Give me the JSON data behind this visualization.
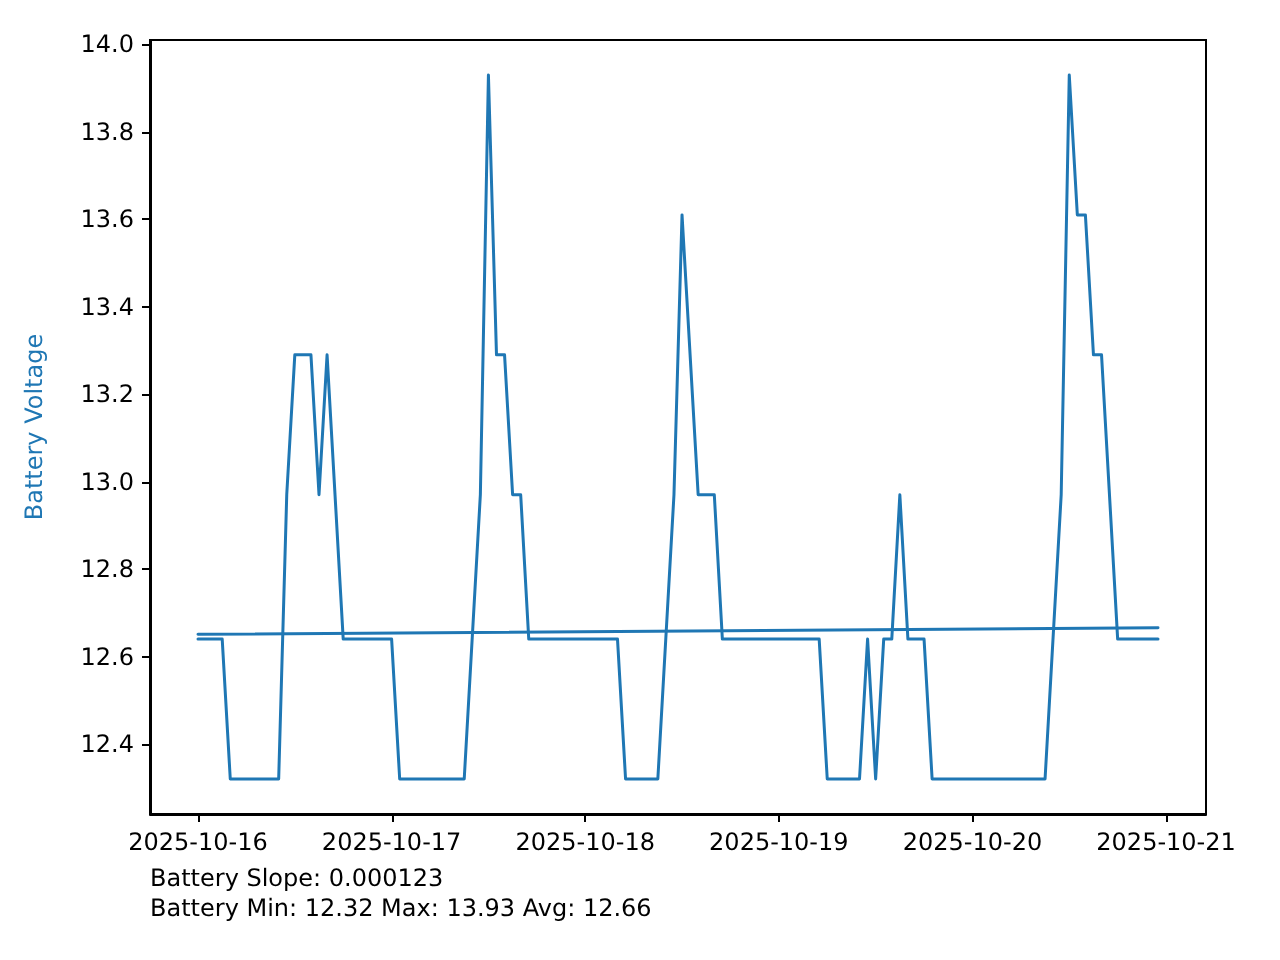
{
  "chart_data": {
    "type": "line",
    "ylabel": "Battery Voltage",
    "xlim": [
      "2025-10-15T18:03",
      "2025-10-21T04:57"
    ],
    "xticks": [
      "2025-10-16",
      "2025-10-17",
      "2025-10-18",
      "2025-10-19",
      "2025-10-20",
      "2025-10-21"
    ],
    "ylim": [
      12.24,
      14.01
    ],
    "yticks": [
      12.4,
      12.6,
      12.8,
      {
        "value": 13,
        "label": "13.0"
      },
      13.2,
      13.4,
      13.6,
      13.8,
      {
        "value": 14,
        "label": "14.0"
      }
    ],
    "grid": false,
    "marker": "none",
    "line_style": "solid",
    "series": [
      {
        "color": "#1f77b4",
        "x": [
          "2025-10-16T00:00",
          "2025-10-16T03:00",
          "2025-10-16T04:00",
          "2025-10-16T10:00",
          "2025-10-16T11:00",
          "2025-10-16T12:00",
          "2025-10-16T14:00",
          "2025-10-16T15:00",
          "2025-10-16T16:00",
          "2025-10-16T18:00",
          "2025-10-17T00:00",
          "2025-10-17T01:00",
          "2025-10-17T09:00",
          "2025-10-17T11:00",
          "2025-10-17T12:00",
          "2025-10-17T13:00",
          "2025-10-17T14:00",
          "2025-10-17T15:00",
          "2025-10-17T16:00",
          "2025-10-17T17:00",
          "2025-10-18T04:00",
          "2025-10-18T05:00",
          "2025-10-18T09:00",
          "2025-10-18T11:00",
          "2025-10-18T12:00",
          "2025-10-18T14:00",
          "2025-10-18T16:00",
          "2025-10-18T17:00",
          "2025-10-19T05:00",
          "2025-10-19T06:00",
          "2025-10-19T10:00",
          "2025-10-19T11:00",
          "2025-10-19T12:00",
          "2025-10-19T13:00",
          "2025-10-19T14:00",
          "2025-10-19T15:00",
          "2025-10-19T16:00",
          "2025-10-19T18:00",
          "2025-10-19T19:00",
          "2025-10-20T09:00",
          "2025-10-20T11:00",
          "2025-10-20T12:00",
          "2025-10-20T13:00",
          "2025-10-20T14:00",
          "2025-10-20T15:00",
          "2025-10-20T16:00",
          "2025-10-20T18:00",
          "2025-10-20T23:00"
        ],
        "values": [
          12.64,
          12.64,
          12.32,
          12.32,
          12.97,
          13.29,
          13.29,
          12.97,
          13.29,
          12.64,
          12.64,
          12.32,
          12.32,
          12.97,
          13.93,
          13.29,
          13.29,
          12.97,
          12.97,
          12.64,
          12.64,
          12.32,
          12.32,
          12.97,
          13.61,
          12.97,
          12.97,
          12.64,
          12.64,
          12.32,
          12.32,
          12.64,
          12.32,
          12.64,
          12.64,
          12.97,
          12.64,
          12.64,
          12.32,
          12.32,
          12.97,
          13.93,
          13.61,
          13.61,
          13.29,
          13.29,
          12.64,
          12.64
        ]
      },
      {
        "color": "#1f77b4",
        "x": [
          "2025-10-16T00:00",
          "2025-10-20T23:00"
        ],
        "values": [
          12.651,
          12.666
        ]
      }
    ],
    "annotations": [
      "Battery Slope: 0.000123",
      "Battery Min: 12.32 Max: 13.93 Avg: 12.66"
    ]
  }
}
